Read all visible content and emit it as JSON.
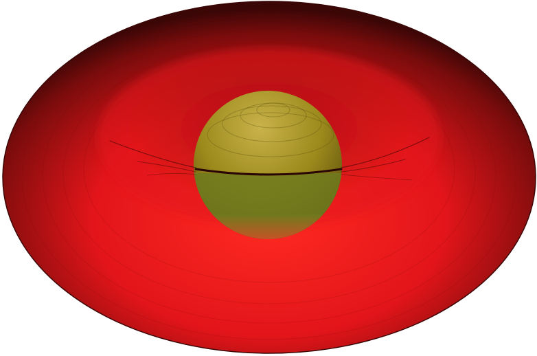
{
  "scene": {
    "subject": "torus-enclosing-sphere",
    "colors": {
      "background": "#ffffff",
      "torus_light": "#ff2a22",
      "torus_mid": "#e3151a",
      "torus_dark": "#7a0c0c",
      "torus_edge": "#3b0606",
      "sphere_light": "#c9b24a",
      "sphere_mid": "#9c8a1c",
      "sphere_dark": "#5a4c0c",
      "sphere_band": "#6f7a1e",
      "sphere_lower_red": "#ff3a2a",
      "seam_dark": "#2a0505"
    }
  }
}
